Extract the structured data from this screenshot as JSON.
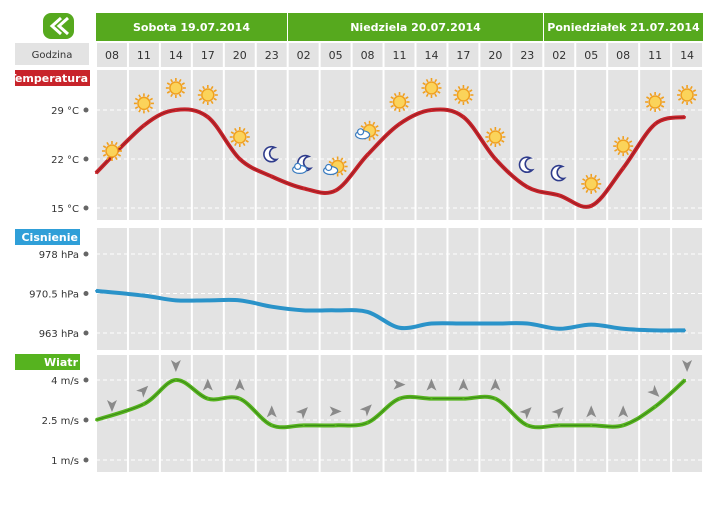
{
  "nav": {
    "back_icon": "chevron-double-left-icon"
  },
  "days": [
    "Sobota 19.07.2014",
    "Niedziela 20.07.2014",
    "Poniedziałek 21.07.2014"
  ],
  "header": {
    "hour_label": "Godzina"
  },
  "hours": [
    "08",
    "11",
    "14",
    "17",
    "20",
    "23",
    "02",
    "05",
    "08",
    "11",
    "14",
    "17",
    "20",
    "23",
    "02",
    "05",
    "08",
    "11",
    "14"
  ],
  "colors": {
    "green": "#56a91e",
    "temp": "#c8242b",
    "pressure": "#2f9fd8",
    "wind": "#56b31f"
  },
  "chart_data": [
    {
      "type": "line",
      "title": "Temperatura",
      "ylim": [
        15,
        29
      ],
      "tick_labels": [
        "29 °C",
        "22 °C",
        "15 °C"
      ],
      "tick_values": [
        29,
        22,
        15
      ],
      "categories": [
        "08",
        "11",
        "14",
        "17",
        "20",
        "23",
        "02",
        "05",
        "08",
        "11",
        "14",
        "17",
        "20",
        "23",
        "02",
        "05",
        "08",
        "11",
        "14"
      ],
      "values": [
        20,
        26.8,
        29,
        28,
        22,
        19.5,
        17.8,
        17.5,
        22.6,
        27,
        29,
        28,
        22,
        18,
        16.8,
        15.3,
        20.7,
        27,
        28
      ],
      "icons": [
        "sun",
        "sun",
        "sun",
        "sun",
        "sun",
        "moon",
        "moon-cloud",
        "sun-cloud",
        "sun-cloud",
        "sun",
        "sun",
        "sun",
        "sun",
        "moon",
        "moon",
        "sun",
        "sun",
        "sun",
        "sun"
      ]
    },
    {
      "type": "line",
      "title": "Cisnienie",
      "ylim": [
        963,
        978
      ],
      "tick_labels": [
        "978 hPa",
        "970.5 hPa",
        "963 hPa"
      ],
      "tick_values": [
        978,
        970.5,
        963
      ],
      "categories": [
        "08",
        "11",
        "14",
        "17",
        "20",
        "23",
        "02",
        "05",
        "08",
        "11",
        "14",
        "17",
        "20",
        "23",
        "02",
        "05",
        "08",
        "11",
        "14"
      ],
      "values": [
        971,
        970.1,
        969.2,
        969.2,
        969.2,
        968,
        967.3,
        967.3,
        967,
        964,
        964.8,
        964.8,
        964.8,
        964.8,
        963.8,
        964.6,
        963.8,
        963.5,
        963.5
      ]
    },
    {
      "type": "line",
      "title": "Wiatr",
      "ylim": [
        1,
        4
      ],
      "tick_labels": [
        "4 m/s",
        "2.5 m/s",
        "1 m/s"
      ],
      "tick_values": [
        4,
        2.5,
        1
      ],
      "categories": [
        "08",
        "11",
        "14",
        "17",
        "20",
        "23",
        "02",
        "05",
        "08",
        "11",
        "14",
        "17",
        "20",
        "23",
        "02",
        "05",
        "08",
        "11",
        "14"
      ],
      "values": [
        2.5,
        3.1,
        4,
        3.3,
        3.3,
        2.3,
        2.3,
        2.3,
        2.4,
        3.3,
        3.3,
        3.3,
        3.3,
        2.3,
        2.3,
        2.3,
        2.3,
        3,
        4
      ],
      "directions_deg": [
        0,
        225,
        0,
        180,
        180,
        180,
        225,
        270,
        225,
        270,
        180,
        180,
        180,
        225,
        225,
        180,
        180,
        315,
        0
      ]
    }
  ]
}
